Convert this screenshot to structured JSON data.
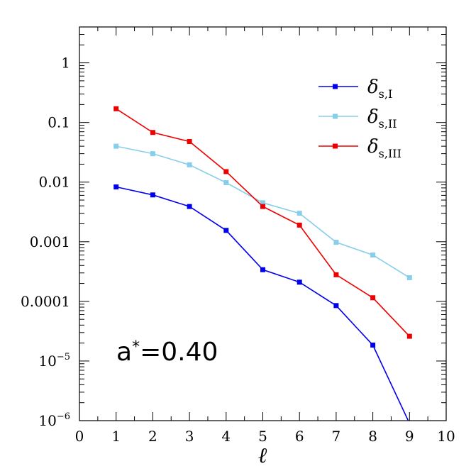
{
  "chart_data": {
    "type": "line",
    "title": "",
    "xlabel": "ℓ",
    "ylabel": "",
    "x_scale": "linear",
    "y_scale": "log",
    "xlim": [
      0,
      10
    ],
    "ylim": [
      1e-06,
      4
    ],
    "x_ticks": [
      0,
      1,
      2,
      3,
      4,
      5,
      6,
      7,
      8,
      9,
      10
    ],
    "x_tick_labels": [
      "0",
      "1",
      "2",
      "3",
      "4",
      "5",
      "6",
      "7",
      "8",
      "9",
      "10"
    ],
    "y_ticks": [
      {
        "value": 1,
        "label": "1",
        "sup": ""
      },
      {
        "value": 0.1,
        "label": "0.1",
        "sup": ""
      },
      {
        "value": 0.01,
        "label": "0.01",
        "sup": ""
      },
      {
        "value": 0.001,
        "label": "0.001",
        "sup": ""
      },
      {
        "value": 0.0001,
        "label": "0.0001",
        "sup": ""
      },
      {
        "value": 1e-05,
        "label": "10",
        "sup": "−5"
      },
      {
        "value": 1e-06,
        "label": "10",
        "sup": "−6"
      }
    ],
    "grid": false,
    "legend_position": "top-right",
    "annotation": {
      "text": "a*=0.40",
      "position": "bottom-left"
    },
    "series": [
      {
        "name": "δ",
        "name_sub": "s,I",
        "color": "#0000ee",
        "x": [
          1,
          2,
          3,
          4,
          5,
          6,
          7,
          8,
          9
        ],
        "y": [
          0.0083,
          0.0061,
          0.0039,
          0.00155,
          0.00034,
          0.00021,
          8.5e-05,
          1.85e-05,
          9e-07
        ],
        "marker_x_max": 8
      },
      {
        "name": "δ",
        "name_sub": "s,II",
        "color": "#87ceeb",
        "x": [
          1,
          2,
          3,
          4,
          5,
          6,
          7,
          8,
          9
        ],
        "y": [
          0.04,
          0.03,
          0.0195,
          0.0098,
          0.0045,
          0.003,
          0.00098,
          0.0006,
          0.00025
        ],
        "marker_x_max": 9
      },
      {
        "name": "δ",
        "name_sub": "s,III",
        "color": "#ee0000",
        "x": [
          1,
          2,
          3,
          4,
          5,
          6,
          7,
          8,
          9
        ],
        "y": [
          0.17,
          0.068,
          0.048,
          0.015,
          0.0039,
          0.0019,
          0.00028,
          0.000115,
          2.6e-05
        ],
        "marker_x_max": 9
      }
    ]
  }
}
